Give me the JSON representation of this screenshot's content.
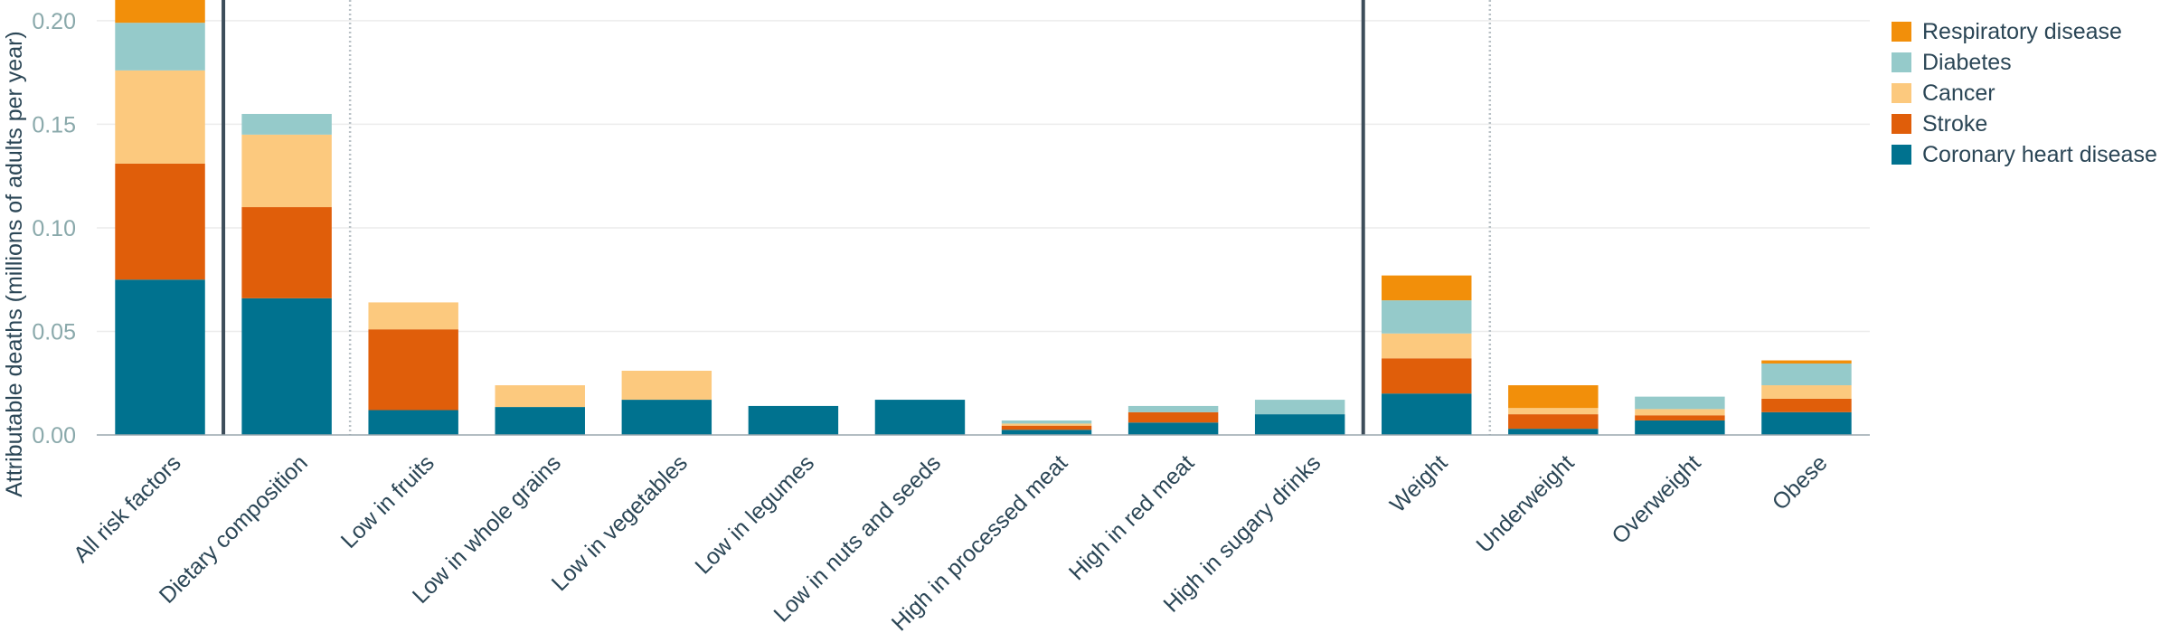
{
  "chart_data": {
    "type": "bar",
    "stacked": true,
    "title": "",
    "xlabel": "",
    "ylabel": "Attributable deaths (millions of adults per year)",
    "ylim": [
      0,
      0.21
    ],
    "yticks": [
      0.0,
      0.05,
      0.1,
      0.15,
      0.2
    ],
    "ytick_labels": [
      "0.00",
      "0.05",
      "0.10",
      "0.15",
      "0.20"
    ],
    "grid": true,
    "legend_position": "top-right",
    "categories": [
      "All risk factors",
      "Dietary composition",
      "Low in fruits",
      "Low in whole grains",
      "Low in vegetables",
      "Low in legumes",
      "Low in nuts and seeds",
      "High in processed meat",
      "High in red meat",
      "High in sugary drinks",
      "Weight",
      "Underweight",
      "Overweight",
      "Obese"
    ],
    "group_separators": [
      {
        "after_category": 0,
        "style": "solid"
      },
      {
        "after_category": 1,
        "style": "dotted"
      },
      {
        "after_category": 9,
        "style": "solid"
      },
      {
        "after_category": 10,
        "style": "dotted"
      }
    ],
    "series": [
      {
        "name": "Coronary heart disease",
        "color": "#00728f",
        "values": [
          0.075,
          0.066,
          0.012,
          0.0135,
          0.017,
          0.014,
          0.017,
          0.0025,
          0.006,
          0.01,
          0.02,
          0.003,
          0.007,
          0.011
        ]
      },
      {
        "name": "Stroke",
        "color": "#e05e0a",
        "values": [
          0.056,
          0.044,
          0.039,
          0.0,
          0.0,
          0.0,
          0.0,
          0.002,
          0.005,
          0.0,
          0.017,
          0.007,
          0.0025,
          0.0065
        ]
      },
      {
        "name": "Cancer",
        "color": "#fcc97e",
        "values": [
          0.045,
          0.035,
          0.013,
          0.0105,
          0.014,
          0.0,
          0.0,
          0.001,
          0.0,
          0.0,
          0.012,
          0.003,
          0.003,
          0.0065
        ]
      },
      {
        "name": "Diabetes",
        "color": "#95caca",
        "values": [
          0.023,
          0.01,
          0.0,
          0.0,
          0.0,
          0.0,
          0.0,
          0.0015,
          0.003,
          0.007,
          0.016,
          0.0,
          0.006,
          0.0105
        ]
      },
      {
        "name": "Respiratory disease",
        "color": "#f28f0a",
        "values": [
          0.022,
          0.0,
          0.0,
          0.0,
          0.0,
          0.0,
          0.0,
          0.0,
          0.0,
          0.0,
          0.012,
          0.011,
          0.0,
          0.0015
        ]
      }
    ],
    "legend_order": [
      "Respiratory disease",
      "Diabetes",
      "Cancer",
      "Stroke",
      "Coronary heart disease"
    ]
  },
  "colors": {
    "axis_text": "#8aa9ab",
    "category_text": "#2b4656",
    "gridline": "#ececec",
    "separator": "#3d4d5a"
  }
}
